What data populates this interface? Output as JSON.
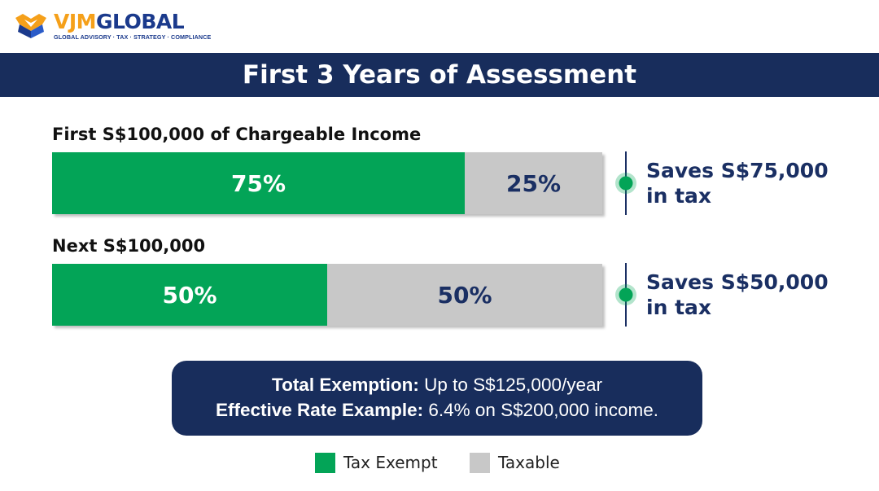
{
  "logo": {
    "name_part1": "VJM",
    "name_part2": "GLOBAL",
    "tagline": "GLOBAL ADVISORY · TAX · STRATEGY · COMPLIANCE"
  },
  "colors": {
    "exempt": "#03a457",
    "taxable": "#c8c8c8",
    "navy": "#182d5c"
  },
  "chart_data": {
    "type": "bar",
    "title": "First 3 Years of Assessment",
    "categories": [
      "First S$100,000 of Chargeable Income",
      "Next S$100,000"
    ],
    "series": [
      {
        "name": "Tax Exempt",
        "values": [
          75,
          50
        ],
        "labels": [
          "75%",
          "50%"
        ]
      },
      {
        "name": "Taxable",
        "values": [
          25,
          50
        ],
        "labels": [
          "25%",
          "50%"
        ]
      }
    ],
    "annotations": [
      {
        "line1": "Saves S$75,000",
        "line2": "in tax"
      },
      {
        "line1": "Saves S$50,000",
        "line2": "in tax"
      }
    ],
    "ylim": [
      0,
      100
    ],
    "stacked": true,
    "orientation": "horizontal",
    "legend_position": "bottom"
  },
  "summary": {
    "line1_label": "Total Exemption:",
    "line1_value": " Up to S$125,000/year",
    "line2_label": "Effective Rate Example:",
    "line2_value": " 6.4% on S$200,000 income."
  }
}
